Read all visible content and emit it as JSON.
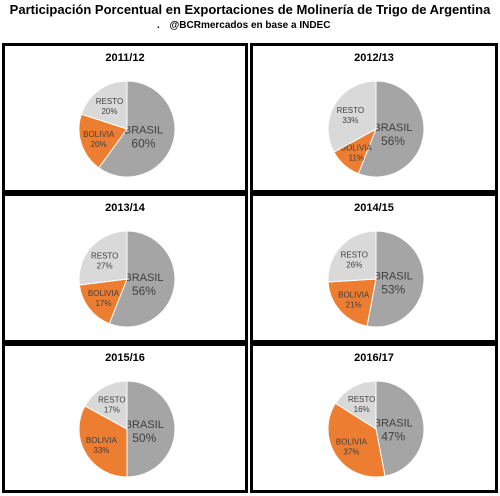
{
  "header": {
    "title": "Participación Porcentual en Exportaciones de Molinería de Trigo de Argentina",
    "dot": ".",
    "subtitle": "@BCRmercados en base a INDEC"
  },
  "colors": {
    "BRASIL": "#a5a5a5",
    "BOLIVIA": "#ed7d31",
    "RESTO": "#d9d9d9"
  },
  "chart_data": [
    {
      "type": "pie",
      "title": "2011/12",
      "slices": [
        {
          "label": "BRASIL",
          "value": 60,
          "value_label": "60%"
        },
        {
          "label": "BOLIVIA",
          "value": 20,
          "value_label": "20%"
        },
        {
          "label": "RESTO",
          "value": 20,
          "value_label": "20%"
        }
      ]
    },
    {
      "type": "pie",
      "title": "2012/13",
      "slices": [
        {
          "label": "BRASIL",
          "value": 56,
          "value_label": "56%"
        },
        {
          "label": "BOLIVIA",
          "value": 11,
          "value_label": "11%"
        },
        {
          "label": "RESTO",
          "value": 33,
          "value_label": "33%"
        }
      ]
    },
    {
      "type": "pie",
      "title": "2013/14",
      "slices": [
        {
          "label": "BRASIL",
          "value": 56,
          "value_label": "56%"
        },
        {
          "label": "BOLIVIA",
          "value": 17,
          "value_label": "17%"
        },
        {
          "label": "RESTO",
          "value": 27,
          "value_label": "27%"
        }
      ]
    },
    {
      "type": "pie",
      "title": "2014/15",
      "slices": [
        {
          "label": "BRASIL",
          "value": 53,
          "value_label": "53%"
        },
        {
          "label": "BOLIVIA",
          "value": 21,
          "value_label": "21%"
        },
        {
          "label": "RESTO",
          "value": 26,
          "value_label": "26%"
        }
      ]
    },
    {
      "type": "pie",
      "title": "2015/16",
      "slices": [
        {
          "label": "BRASIL",
          "value": 50,
          "value_label": "50%"
        },
        {
          "label": "BOLIVIA",
          "value": 33,
          "value_label": "33%"
        },
        {
          "label": "RESTO",
          "value": 17,
          "value_label": "17%"
        }
      ]
    },
    {
      "type": "pie",
      "title": "2016/17",
      "slices": [
        {
          "label": "BRASIL",
          "value": 47,
          "value_label": "47%"
        },
        {
          "label": "BOLIVIA",
          "value": 37,
          "value_label": "37%"
        },
        {
          "label": "RESTO",
          "value": 16,
          "value_label": "16%"
        }
      ]
    }
  ]
}
